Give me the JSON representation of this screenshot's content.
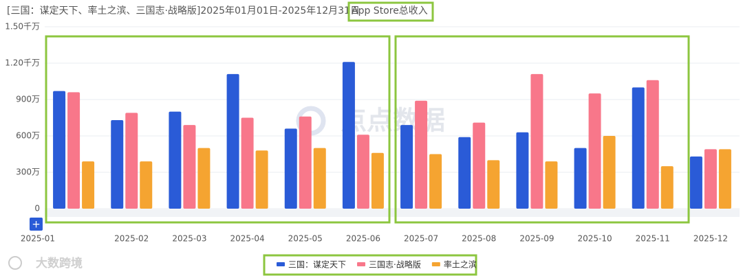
{
  "chart_data": {
    "type": "bar",
    "title": "[三国：谋定天下、率土之滨、三国志·战略版]2025年01月01日-2025年12月31日",
    "title_highlight": "App Store总收入",
    "watermark": "点点数据",
    "brand": "大数跨境",
    "categories": [
      "2025-01",
      "2025-02",
      "2025-03",
      "2025-04",
      "2025-05",
      "2025-06",
      "2025-07",
      "2025-08",
      "2025-09",
      "2025-10",
      "2025-11",
      "2025-12"
    ],
    "series": [
      {
        "name": "三国：谋定天下",
        "color": "#2a5bd7",
        "values": [
          970,
          730,
          800,
          1110,
          660,
          1210,
          690,
          590,
          630,
          500,
          1000,
          430
        ]
      },
      {
        "name": "三国志·战略版",
        "color": "#f8778a",
        "values": [
          960,
          790,
          690,
          750,
          760,
          610,
          890,
          710,
          1110,
          950,
          1060,
          490
        ]
      },
      {
        "name": "率土之滨",
        "color": "#f5a431",
        "values": [
          390,
          390,
          500,
          480,
          500,
          460,
          450,
          400,
          390,
          600,
          350,
          490
        ]
      }
    ],
    "ylim": [
      0,
      1500
    ],
    "yticks": [
      0,
      {
        "value": 300,
        "label": "300万"
      },
      {
        "value": 600,
        "label": "600万"
      },
      {
        "value": 900,
        "label": "900万"
      },
      {
        "value": 1200,
        "label": "1.20千万"
      },
      {
        "value": 1500,
        "label": "1.50千万"
      }
    ],
    "grid": true
  }
}
